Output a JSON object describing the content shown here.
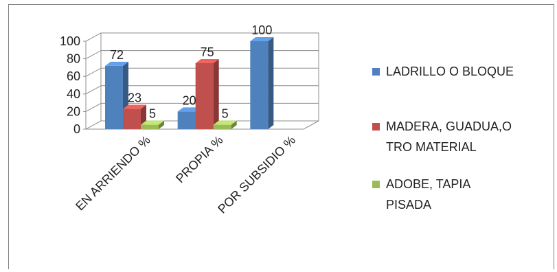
{
  "chart_data": {
    "type": "bar",
    "title": "",
    "xlabel": "",
    "ylabel": "",
    "ylim": [
      0,
      100
    ],
    "yticks": [
      0,
      20,
      40,
      60,
      80,
      100
    ],
    "grid": true,
    "legend_position": "right",
    "categories": [
      "EN ARRIENDO %",
      "PROPIA %",
      "POR SUBSIDIO %"
    ],
    "series": [
      {
        "name": "LADRILLO O BLOQUE",
        "values": [
          72,
          20,
          100
        ],
        "color": "#4f81bd"
      },
      {
        "name": "MADERA, GUADUA,O TRO MATERIAL",
        "values": [
          23,
          75,
          null
        ],
        "color": "#c0504d"
      },
      {
        "name": "ADOBE, TAPIA PISADA",
        "values": [
          5,
          5,
          null
        ],
        "color": "#9bbb59"
      }
    ]
  },
  "legend_lines": [
    [
      "LADRILLO O BLOQUE"
    ],
    [
      "MADERA, GUADUA,O",
      "TRO MATERIAL"
    ],
    [
      "ADOBE, TAPIA",
      "PISADA"
    ]
  ]
}
